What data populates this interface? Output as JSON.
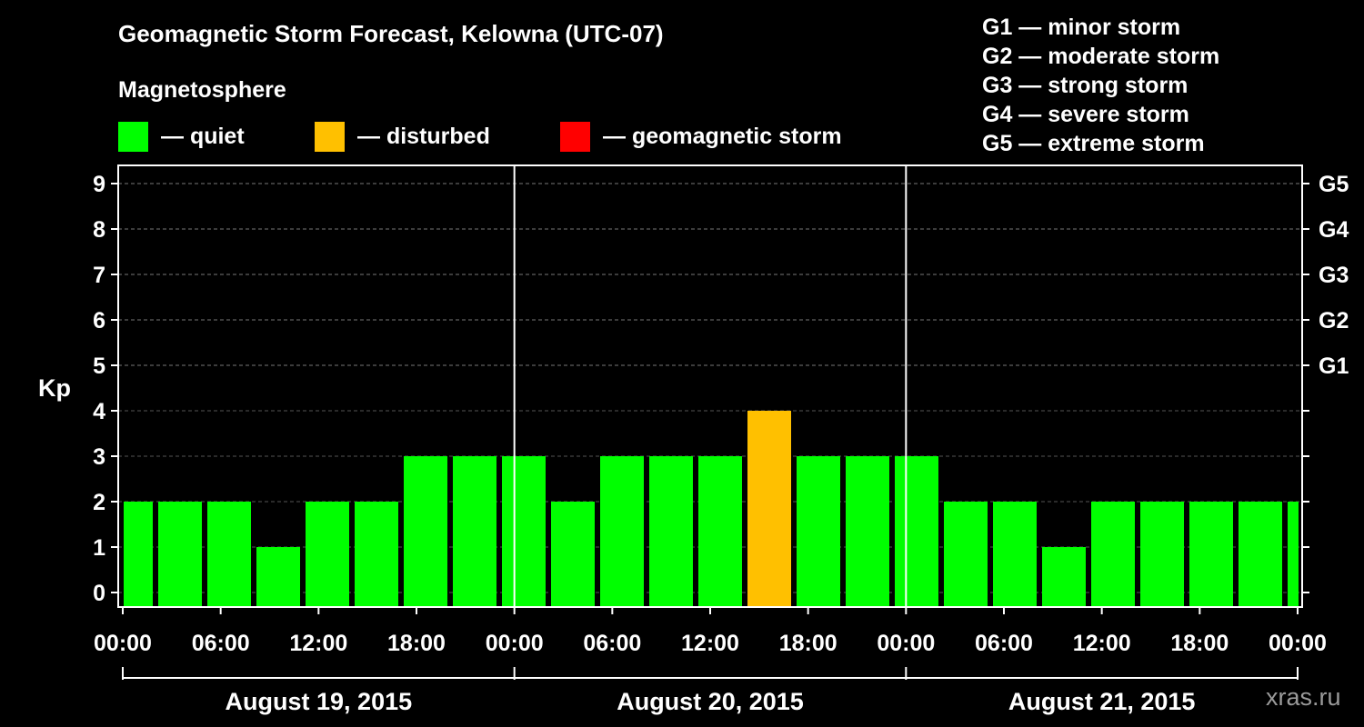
{
  "title": "Geomagnetic Storm Forecast, Kelowna (UTC-07)",
  "legend": {
    "heading": "Magnetosphere",
    "items": [
      {
        "label": "— quiet",
        "color": "#00ff00"
      },
      {
        "label": "— disturbed",
        "color": "#ffc000"
      },
      {
        "label": "— geomagnetic storm",
        "color": "#ff0000"
      }
    ]
  },
  "storm_levels": [
    "G1 — minor storm",
    "G2 — moderate storm",
    "G3 — strong storm",
    "G4 — severe storm",
    "G5 — extreme storm"
  ],
  "watermark": "xras.ru",
  "chart_data": {
    "type": "bar",
    "ylabel": "Kp",
    "ylim": [
      0,
      9
    ],
    "y_ticks": [
      0,
      1,
      2,
      3,
      4,
      5,
      6,
      7,
      8,
      9
    ],
    "right_ticks": [
      {
        "kp": 5,
        "label": "G1"
      },
      {
        "kp": 6,
        "label": "G2"
      },
      {
        "kp": 7,
        "label": "G3"
      },
      {
        "kp": 8,
        "label": "G4"
      },
      {
        "kp": 9,
        "label": "G5"
      }
    ],
    "x_tick_labels": [
      "00:00",
      "06:00",
      "12:00",
      "18:00",
      "00:00",
      "06:00",
      "12:00",
      "18:00",
      "00:00",
      "06:00",
      "12:00",
      "18:00",
      "00:00"
    ],
    "days": [
      "August 19, 2015",
      "August 20, 2015",
      "August 21, 2015"
    ],
    "grid": "dashed horizontal at integer Kp",
    "values": [
      2,
      2,
      2,
      1,
      2,
      2,
      3,
      3,
      3,
      2,
      3,
      3,
      3,
      4,
      3,
      3,
      3,
      2,
      2,
      1,
      2,
      2,
      2,
      2,
      2
    ],
    "colors_by_kp": {
      "quiet": "#00ff00",
      "disturbed": "#ffc000",
      "storm": "#ff0000"
    }
  }
}
